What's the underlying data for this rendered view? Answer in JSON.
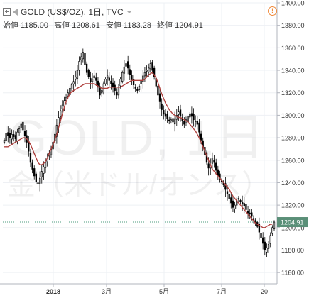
{
  "header": {
    "title": "GOLD (US$/OZ), 1日, TVC",
    "alert_glyph": "!"
  },
  "ohlc": {
    "open_label": "始値",
    "open": "1185.00",
    "high_label": "高値",
    "high": "1208.61",
    "low_label": "安値",
    "low": "1183.28",
    "close_label": "終値",
    "close": "1204.91"
  },
  "watermark": {
    "line1": "GOLD, 1日",
    "line2": "金（米ドル/オンス）"
  },
  "colors": {
    "up": "#53b987",
    "down": "#eb4d5c",
    "candle_fill": "#000000",
    "ma_line": "#b0413e",
    "price_tag": "#5a8f78",
    "hline_dotted": "#4b9b7e",
    "hline_solid": "#c7d3e8",
    "alert": "#f08a3a"
  },
  "chart_data": {
    "type": "candlestick",
    "instrument": "GOLD (US$/OZ)",
    "timeframe": "1日",
    "ylim": [
      1150,
      1400
    ],
    "yticks": [
      1160,
      1180,
      1200,
      1220,
      1240,
      1260,
      1280,
      1300,
      1320,
      1340,
      1360,
      1380,
      1400
    ],
    "xticks": [
      "2018",
      "3月",
      "5月",
      "7月",
      "20"
    ],
    "last_price": "1204.91",
    "reference_line": 1180,
    "series": [
      {
        "kind": "price",
        "values": [
          1278,
          1284,
          1282,
          1280,
          1283,
          1281,
          1279,
          1285,
          1288,
          1292,
          1287,
          1282,
          1276,
          1268,
          1258,
          1252,
          1246,
          1241,
          1239,
          1244,
          1250,
          1254,
          1258,
          1262,
          1266,
          1270,
          1276,
          1283,
          1291,
          1298,
          1304,
          1309,
          1313,
          1316,
          1320,
          1324,
          1327,
          1330,
          1334,
          1340,
          1348,
          1352,
          1356,
          1345,
          1338,
          1334,
          1330,
          1332,
          1335,
          1331,
          1325,
          1318,
          1322,
          1328,
          1332,
          1335,
          1331,
          1328,
          1325,
          1322,
          1318,
          1325,
          1332,
          1338,
          1343,
          1346,
          1342,
          1336,
          1331,
          1327,
          1324,
          1322,
          1326,
          1331,
          1335,
          1338,
          1340,
          1342,
          1346,
          1340,
          1334,
          1326,
          1318,
          1312,
          1305,
          1301,
          1299,
          1297,
          1295,
          1296,
          1294,
          1297,
          1300,
          1303,
          1299,
          1295,
          1292,
          1296,
          1299,
          1301,
          1299,
          1296,
          1295,
          1292,
          1285,
          1278,
          1271,
          1265,
          1258,
          1253,
          1256,
          1262,
          1258,
          1251,
          1246,
          1243,
          1241,
          1238,
          1234,
          1230,
          1226,
          1222,
          1218,
          1220,
          1224,
          1226,
          1223,
          1221,
          1219,
          1216,
          1213,
          1212,
          1210,
          1207,
          1204,
          1201,
          1196,
          1191,
          1186,
          1180,
          1182,
          1185,
          1193,
          1200,
          1204.91
        ]
      },
      {
        "kind": "ma",
        "values": [
          1272,
          1272,
          1272,
          1273,
          1274,
          1275,
          1276,
          1277,
          1278,
          1279,
          1280,
          1280,
          1279,
          1277,
          1274,
          1270,
          1266,
          1262,
          1258,
          1256,
          1256,
          1257,
          1259,
          1262,
          1266,
          1270,
          1274,
          1278,
          1283,
          1289,
          1295,
          1301,
          1307,
          1312,
          1316,
          1319,
          1321,
          1322,
          1323,
          1324,
          1325,
          1326,
          1327,
          1328,
          1328,
          1328,
          1328,
          1328,
          1328,
          1327,
          1326,
          1325,
          1324,
          1324,
          1324,
          1324,
          1325,
          1325,
          1325,
          1325,
          1325,
          1325,
          1325,
          1326,
          1327,
          1328,
          1329,
          1330,
          1331,
          1331,
          1331,
          1331,
          1331,
          1331,
          1331,
          1332,
          1334,
          1336,
          1337,
          1338,
          1336,
          1333,
          1329,
          1324,
          1319,
          1315,
          1311,
          1308,
          1305,
          1303,
          1301,
          1300,
          1299,
          1298,
          1298,
          1297,
          1296,
          1295,
          1294,
          1292,
          1290,
          1288,
          1286,
          1283,
          1280,
          1276,
          1272,
          1268,
          1264,
          1260,
          1256,
          1252,
          1250,
          1248,
          1246,
          1244,
          1242,
          1240,
          1238,
          1236,
          1234,
          1231,
          1228,
          1226,
          1224,
          1222,
          1220,
          1218,
          1216,
          1214,
          1212,
          1210,
          1208,
          1206,
          1204,
          1203,
          1202,
          1201,
          1200,
          1200,
          1201,
          1202,
          1203,
          1203
        ]
      }
    ]
  }
}
